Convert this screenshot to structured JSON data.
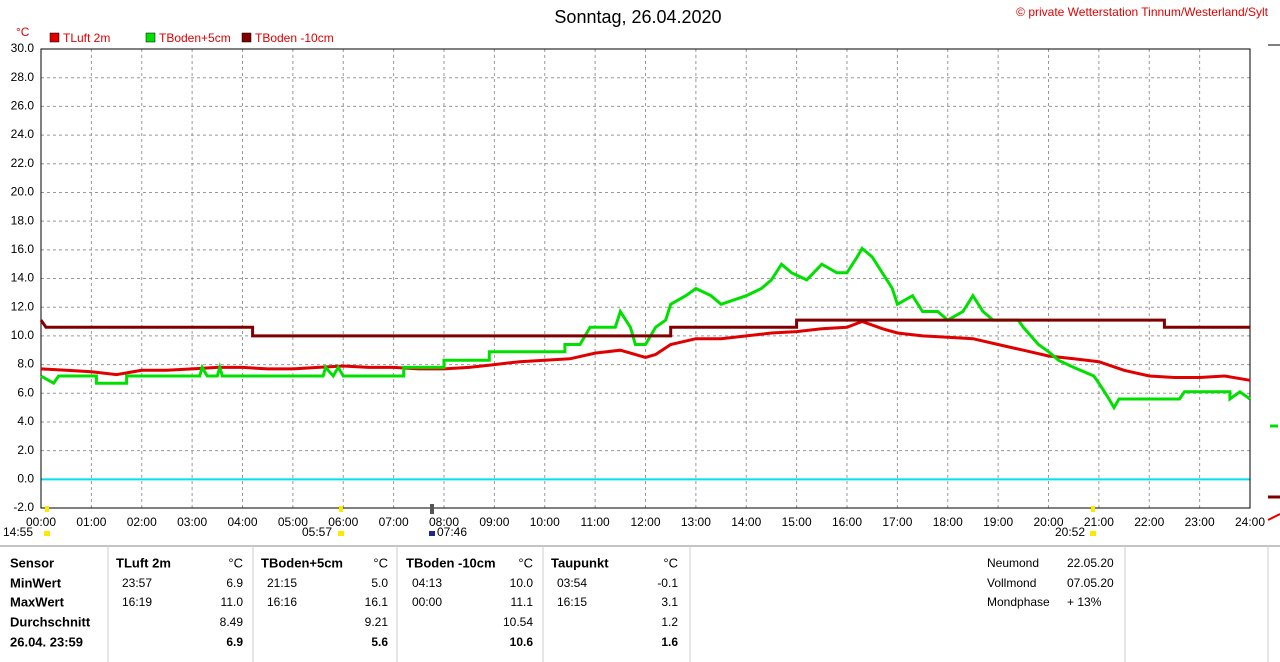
{
  "chart_data": {
    "type": "line",
    "title": "Sonntag, 26.04.2020",
    "copyright": "© private Wetterstation Tinnum/Westerland/Sylt",
    "y_label": "°C",
    "xlim": [
      0,
      24
    ],
    "ylim": [
      -2,
      30
    ],
    "grid": true,
    "reference_line": {
      "value": 0,
      "color": "#00e0f0"
    },
    "xticks": [
      {
        "value": 0,
        "label": "00:00"
      },
      {
        "value": 1,
        "label": "01:00"
      },
      {
        "value": 2,
        "label": "02:00"
      },
      {
        "value": 3,
        "label": "03:00"
      },
      {
        "value": 4,
        "label": "04:00"
      },
      {
        "value": 5,
        "label": "05:00"
      },
      {
        "value": 6,
        "label": "06:00"
      },
      {
        "value": 7,
        "label": "07:00"
      },
      {
        "value": 8,
        "label": "08:00"
      },
      {
        "value": 9,
        "label": "09:00"
      },
      {
        "value": 10,
        "label": "10:00"
      },
      {
        "value": 11,
        "label": "11:00"
      },
      {
        "value": 12,
        "label": "12:00"
      },
      {
        "value": 13,
        "label": "13:00"
      },
      {
        "value": 14,
        "label": "14:00"
      },
      {
        "value": 15,
        "label": "15:00"
      },
      {
        "value": 16,
        "label": "16:00"
      },
      {
        "value": 17,
        "label": "17:00"
      },
      {
        "value": 18,
        "label": "18:00"
      },
      {
        "value": 19,
        "label": "19:00"
      },
      {
        "value": 20,
        "label": "20:00"
      },
      {
        "value": 21,
        "label": "21:00"
      },
      {
        "value": 22,
        "label": "22:00"
      },
      {
        "value": 23,
        "label": "23:00"
      },
      {
        "value": 24,
        "label": "24:00"
      }
    ],
    "yticks": [
      {
        "value": -2,
        "label": "-2.0"
      },
      {
        "value": 0,
        "label": "0.0"
      },
      {
        "value": 2,
        "label": "2.0"
      },
      {
        "value": 4,
        "label": "4.0"
      },
      {
        "value": 6,
        "label": "6.0"
      },
      {
        "value": 8,
        "label": "8.0"
      },
      {
        "value": 10,
        "label": "10.0"
      },
      {
        "value": 12,
        "label": "12.0"
      },
      {
        "value": 14,
        "label": "14.0"
      },
      {
        "value": 16,
        "label": "16.0"
      },
      {
        "value": 18,
        "label": "18.0"
      },
      {
        "value": 20,
        "label": "20.0"
      },
      {
        "value": 22,
        "label": "22.0"
      },
      {
        "value": 24,
        "label": "24.0"
      },
      {
        "value": 26,
        "label": "26.0"
      },
      {
        "value": 28,
        "label": "28.0"
      },
      {
        "value": 30,
        "label": "30.0"
      }
    ],
    "series": [
      {
        "name": "TLuft 2m",
        "color": "#e00000",
        "x": [
          0,
          0.5,
          1,
          1.5,
          2,
          2.5,
          3,
          3.5,
          4,
          4.5,
          5,
          5.5,
          6,
          6.5,
          7,
          7.5,
          8,
          8.5,
          9,
          9.5,
          10,
          10.5,
          11,
          11.5,
          12,
          12.2,
          12.5,
          13,
          13.5,
          14,
          14.5,
          15,
          15.5,
          16,
          16.3,
          16.7,
          17,
          17.5,
          18,
          18.5,
          19,
          19.5,
          20,
          20.5,
          21,
          21.5,
          22,
          22.5,
          23,
          23.5,
          24
        ],
        "values": [
          7.7,
          7.6,
          7.5,
          7.3,
          7.6,
          7.6,
          7.7,
          7.8,
          7.8,
          7.7,
          7.7,
          7.8,
          7.9,
          7.8,
          7.8,
          7.7,
          7.7,
          7.8,
          8.0,
          8.2,
          8.3,
          8.4,
          8.8,
          9.0,
          8.5,
          8.7,
          9.4,
          9.8,
          9.8,
          10.0,
          10.2,
          10.3,
          10.5,
          10.6,
          11.0,
          10.5,
          10.2,
          10.0,
          9.9,
          9.8,
          9.4,
          9.0,
          8.6,
          8.4,
          8.2,
          7.6,
          7.2,
          7.1,
          7.1,
          7.2,
          6.9
        ]
      },
      {
        "name": "TBoden+5cm",
        "color": "#00e000",
        "x": [
          0,
          0.25,
          0.35,
          1.1,
          1.1,
          1.7,
          1.7,
          3.15,
          3.2,
          3.3,
          3.5,
          3.55,
          3.6,
          5.6,
          5.65,
          5.8,
          5.9,
          6.0,
          7.2,
          7.2,
          8.0,
          8.0,
          8.9,
          8.9,
          10.4,
          10.4,
          10.7,
          10.9,
          11.4,
          11.5,
          11.7,
          11.8,
          12.0,
          12.2,
          12.4,
          12.5,
          12.8,
          13.0,
          13.3,
          13.5,
          14.0,
          14.3,
          14.5,
          14.7,
          14.9,
          15.2,
          15.5,
          15.8,
          16.0,
          16.2,
          16.3,
          16.5,
          16.7,
          16.9,
          17.0,
          17.3,
          17.5,
          17.8,
          18.0,
          18.3,
          18.5,
          18.7,
          18.9,
          19.4,
          19.5,
          19.8,
          20.0,
          20.2,
          20.5,
          20.9,
          21.0,
          21.2,
          21.3,
          21.4,
          22.6,
          22.7,
          23.6,
          23.6,
          23.8,
          24
        ],
        "values": [
          7.2,
          6.7,
          7.2,
          7.2,
          6.7,
          6.7,
          7.2,
          7.2,
          7.8,
          7.2,
          7.2,
          7.8,
          7.2,
          7.2,
          7.8,
          7.2,
          7.8,
          7.2,
          7.2,
          7.8,
          7.8,
          8.3,
          8.3,
          8.9,
          8.9,
          9.4,
          9.4,
          10.6,
          10.6,
          11.7,
          10.6,
          9.4,
          9.4,
          10.6,
          11.1,
          12.2,
          12.8,
          13.3,
          12.8,
          12.2,
          12.8,
          13.3,
          13.9,
          15.0,
          14.4,
          13.9,
          15.0,
          14.4,
          14.4,
          15.5,
          16.1,
          15.5,
          14.4,
          13.3,
          12.2,
          12.8,
          11.7,
          11.7,
          11.1,
          11.7,
          12.8,
          11.7,
          11.1,
          11.1,
          10.6,
          9.4,
          8.9,
          8.3,
          7.8,
          7.2,
          6.7,
          5.6,
          5.0,
          5.6,
          5.6,
          6.1,
          6.1,
          5.6,
          6.1,
          5.6
        ]
      },
      {
        "name": "TBoden -10cm",
        "color": "#800000",
        "x": [
          0,
          0.1,
          4.2,
          4.2,
          12.5,
          12.5,
          15.0,
          15.0,
          22.3,
          22.3,
          24
        ],
        "values": [
          11.1,
          10.6,
          10.6,
          10.0,
          10.0,
          10.6,
          10.6,
          11.1,
          11.1,
          10.6,
          10.6
        ]
      }
    ]
  },
  "markers": [
    "14:55",
    "05:57",
    "07:46",
    "20:52"
  ],
  "table": {
    "rows": [
      [
        "Sensor",
        "TLuft 2m",
        "°C",
        "TBoden+5cm",
        "°C",
        "TBoden -10cm",
        "°C",
        "Taupunkt",
        "°C"
      ],
      [
        "MinWert",
        "23:57",
        "6.9",
        "21:15",
        "5.0",
        "04:13",
        "10.0",
        "03:54",
        "-0.1"
      ],
      [
        "MaxWert",
        "16:19",
        "11.0",
        "16:16",
        "16.1",
        "00:00",
        "11.1",
        "16:15",
        "3.1"
      ],
      [
        "Durchschnitt",
        null,
        "8.49",
        null,
        "9.21",
        null,
        "10.54",
        null,
        "1.2"
      ],
      [
        "26.04. 23:59",
        null,
        "6.9",
        null,
        "5.6",
        null,
        "10.6",
        null,
        "1.6"
      ]
    ]
  },
  "moon": [
    [
      "Neumond",
      "22.05.20"
    ],
    [
      "Vollmond",
      "07.05.20"
    ],
    [
      "Mondphase",
      "+ 13%"
    ]
  ]
}
